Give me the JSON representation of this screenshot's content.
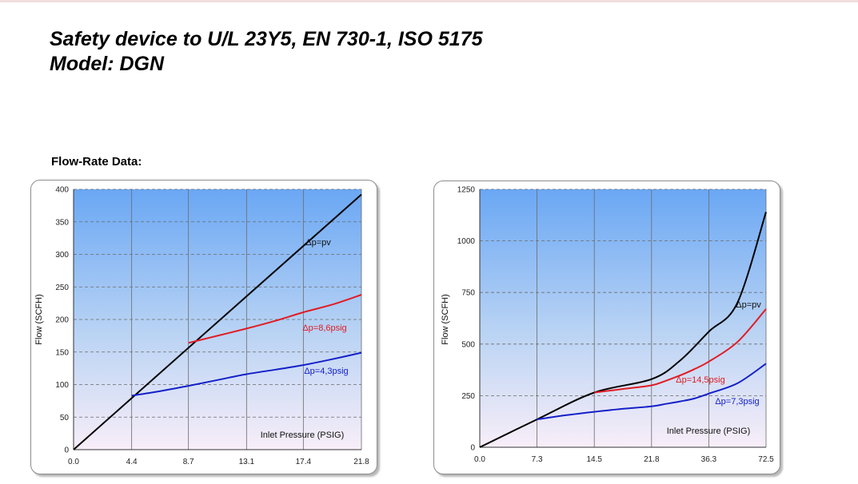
{
  "header": {
    "title_line1": "Safety device to U/L 23Y5, EN 730-1, ISO 5175",
    "title_line2": "Model: DGN"
  },
  "section_label": "Flow-Rate Data:",
  "colors": {
    "plot_top": "#6aa7f4",
    "plot_bottom": "#f8eef8",
    "pv": "#000000",
    "dp_high": "#e01c24",
    "dp_low": "#1420c8"
  },
  "chart_data": [
    {
      "type": "line",
      "title": "",
      "xlabel": "Inlet Pressure (PSIG)",
      "ylabel": "Flow (SCFH)",
      "x_ticks": [
        "0.0",
        "4.4",
        "8.7",
        "13.1",
        "17.4",
        "21.8"
      ],
      "x_tick_values": [
        0.0,
        4.4,
        8.7,
        13.1,
        17.4,
        21.8
      ],
      "xlim": [
        0,
        21.8
      ],
      "y_ticks": [
        0,
        50,
        100,
        150,
        200,
        250,
        300,
        350,
        400
      ],
      "ylim": [
        0,
        400
      ],
      "grid": true,
      "series": [
        {
          "name": "Δp=pv",
          "color": "#000000",
          "x": [
            0.0,
            21.8
          ],
          "y": [
            0,
            392
          ]
        },
        {
          "name": "Δp=8,6psig",
          "color": "#e01c24",
          "x": [
            8.7,
            10.9,
            13.1,
            15.3,
            17.4,
            19.6,
            21.8
          ],
          "y": [
            164,
            175,
            186,
            198,
            211,
            223,
            238
          ]
        },
        {
          "name": "Δp=4,3psig",
          "color": "#1420c8",
          "x": [
            4.4,
            6.6,
            8.7,
            10.9,
            13.1,
            15.3,
            17.4,
            19.6,
            21.8
          ],
          "y": [
            83,
            90,
            98,
            107,
            116,
            123,
            130,
            139,
            149
          ]
        }
      ]
    },
    {
      "type": "line",
      "title": "",
      "xlabel": "Inlet Pressure (PSIG)",
      "ylabel": "Flow (SCFH)",
      "x_ticks": [
        "0.0",
        "7.3",
        "14.5",
        "21.8",
        "36.3",
        "72.5"
      ],
      "xlim_index": [
        0,
        5
      ],
      "y_ticks": [
        0,
        250,
        500,
        750,
        1000,
        1250
      ],
      "ylim": [
        0,
        1250
      ],
      "grid": true,
      "series": [
        {
          "name": "Δp=pv",
          "color": "#000000",
          "x": [
            0.0,
            7.3,
            14.5,
            21.8,
            29.0,
            36.3,
            54.4,
            72.5
          ],
          "y": [
            0,
            135,
            265,
            330,
            420,
            560,
            700,
            1140
          ]
        },
        {
          "name": "Δp=14,5psig",
          "color": "#e01c24",
          "x": [
            14.5,
            18.1,
            21.8,
            25.4,
            29.0,
            32.6,
            36.3,
            54.4,
            72.5
          ],
          "y": [
            265,
            282,
            300,
            322,
            348,
            378,
            415,
            510,
            670
          ]
        },
        {
          "name": "Δp=7,3psig",
          "color": "#1420c8",
          "x": [
            7.3,
            10.9,
            14.5,
            18.1,
            21.8,
            25.4,
            29.0,
            32.6,
            36.3,
            54.4,
            72.5
          ],
          "y": [
            135,
            155,
            172,
            186,
            198,
            210,
            222,
            236,
            260,
            310,
            405
          ]
        }
      ]
    }
  ]
}
